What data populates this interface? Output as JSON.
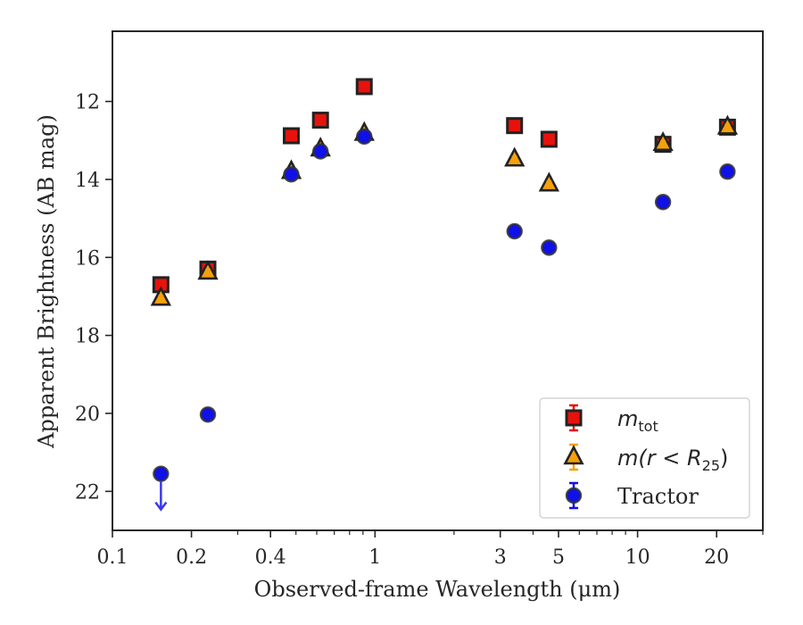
{
  "chart_data": {
    "type": "scatter",
    "xlabel": "Observed-frame Wavelength (μm)",
    "ylabel": "Apparent Brightness (AB mag)",
    "xscale": "log",
    "xlim": [
      0.1,
      30
    ],
    "ylim": [
      23.0,
      10.2
    ],
    "y_inverted": true,
    "x_ticks": [
      {
        "value": 0.1,
        "label": "0.1"
      },
      {
        "value": 0.2,
        "label": "0.2"
      },
      {
        "value": 0.4,
        "label": "0.4"
      },
      {
        "value": 1,
        "label": "1"
      },
      {
        "value": 3,
        "label": "3"
      },
      {
        "value": 5,
        "label": "5"
      },
      {
        "value": 10,
        "label": "10"
      },
      {
        "value": 20,
        "label": "20"
      }
    ],
    "x_minor_ticks": [
      0.3,
      0.5,
      0.6,
      0.7,
      0.8,
      0.9,
      2,
      4,
      6,
      7,
      8,
      9,
      30
    ],
    "y_ticks": [
      {
        "value": 12,
        "label": "12"
      },
      {
        "value": 14,
        "label": "14"
      },
      {
        "value": 16,
        "label": "16"
      },
      {
        "value": 18,
        "label": "18"
      },
      {
        "value": 20,
        "label": "20"
      },
      {
        "value": 22,
        "label": "22"
      }
    ],
    "legend_position": "lower-right",
    "series": [
      {
        "name": "m_tot",
        "legend_label": "m",
        "legend_sub": "tot",
        "marker": "square",
        "color": "#e8120c",
        "edge": "#222222",
        "points": [
          {
            "x": 0.153,
            "y": 16.7
          },
          {
            "x": 0.231,
            "y": 16.3
          },
          {
            "x": 0.48,
            "y": 12.88
          },
          {
            "x": 0.62,
            "y": 12.48
          },
          {
            "x": 0.91,
            "y": 11.62
          },
          {
            "x": 3.4,
            "y": 12.62
          },
          {
            "x": 4.6,
            "y": 12.97
          },
          {
            "x": 12.5,
            "y": 13.1
          },
          {
            "x": 22.0,
            "y": 12.66
          }
        ]
      },
      {
        "name": "m(r < R_25)",
        "legend_label": "m(r < R",
        "legend_sub": "25",
        "legend_suffix": ")",
        "marker": "triangle",
        "color": "#f5a10b",
        "edge": "#222222",
        "points": [
          {
            "x": 0.153,
            "y": 17.05
          },
          {
            "x": 0.231,
            "y": 16.38
          },
          {
            "x": 0.48,
            "y": 13.8
          },
          {
            "x": 0.62,
            "y": 13.22
          },
          {
            "x": 0.91,
            "y": 12.82
          },
          {
            "x": 3.4,
            "y": 13.48
          },
          {
            "x": 4.6,
            "y": 14.12
          },
          {
            "x": 12.5,
            "y": 13.08
          },
          {
            "x": 22.0,
            "y": 12.66
          }
        ]
      },
      {
        "name": "Tractor",
        "legend_label": "Tractor",
        "marker": "circle",
        "color": "#1010e8",
        "edge": "#333333",
        "points": [
          {
            "x": 0.153,
            "y": 21.55,
            "upper_limit": true
          },
          {
            "x": 0.231,
            "y": 20.03
          },
          {
            "x": 0.48,
            "y": 13.87
          },
          {
            "x": 0.62,
            "y": 13.28
          },
          {
            "x": 0.91,
            "y": 12.9
          },
          {
            "x": 3.4,
            "y": 15.33
          },
          {
            "x": 4.6,
            "y": 15.75
          },
          {
            "x": 12.5,
            "y": 14.58
          },
          {
            "x": 22.0,
            "y": 13.8
          }
        ]
      }
    ]
  }
}
